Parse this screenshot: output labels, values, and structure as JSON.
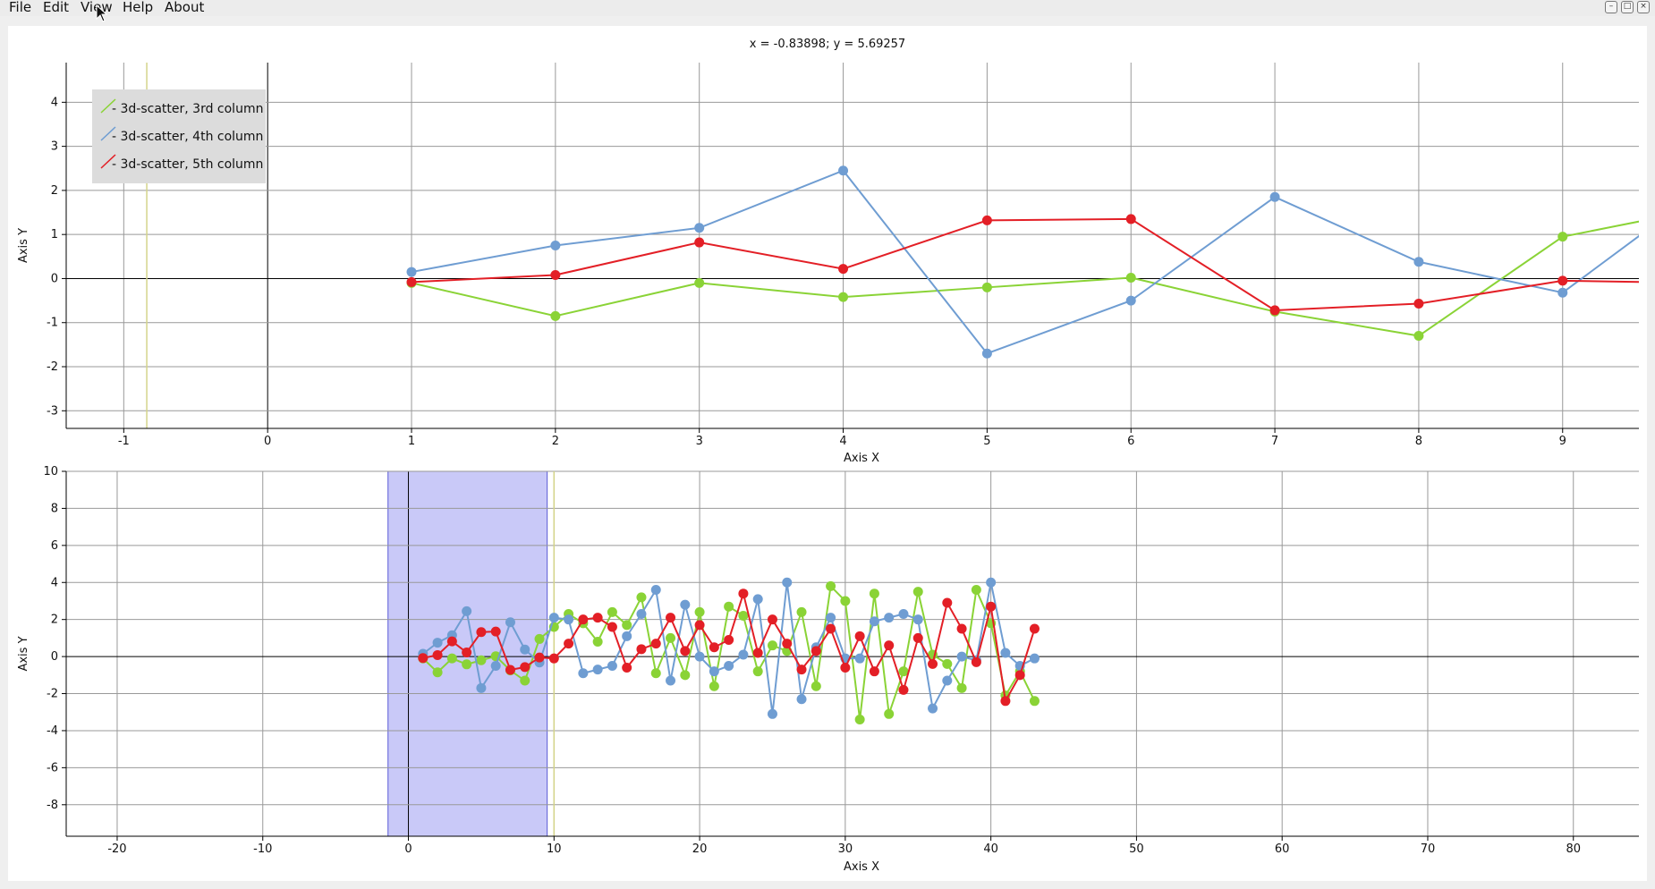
{
  "menubar": {
    "items": [
      "File",
      "Edit",
      "View",
      "Help",
      "About"
    ]
  },
  "window_controls": {
    "minimize_icon": "minimize-icon",
    "maximize_icon": "maximize-icon",
    "close_icon": "close-icon"
  },
  "readout": "x = -0.83898; y = 5.69257",
  "colors": {
    "green": "#8ad336",
    "blue": "#6f9dd2",
    "red": "#e31f26",
    "selection_fill": "#c9c9f8",
    "selection_stroke": "#5b5bd6",
    "marker_line": "#d4d48a"
  },
  "chart_data": [
    {
      "type": "line",
      "xlabel": "Axis X",
      "ylabel": "Axis Y",
      "xlim": [
        -1.4,
        9.53
      ],
      "ylim": [
        -3.4,
        4.9
      ],
      "xticks": [
        -1,
        0,
        1,
        2,
        3,
        4,
        5,
        6,
        7,
        8,
        9
      ],
      "yticks": [
        -3,
        -2,
        -1,
        0,
        1,
        2,
        3,
        4
      ],
      "grid": true,
      "legend_position": "top-left",
      "marker_x": -0.84,
      "series": [
        {
          "name": "3d-scatter, 3rd column",
          "color": "#8ad336",
          "x": [
            1,
            2,
            3,
            4,
            5,
            6,
            7,
            8,
            9,
            10
          ],
          "y": [
            -0.1,
            -0.85,
            -0.1,
            -0.42,
            -0.2,
            0.02,
            -0.75,
            -1.3,
            0.95,
            1.6
          ]
        },
        {
          "name": "3d-scatter, 4th column",
          "color": "#6f9dd2",
          "x": [
            1,
            2,
            3,
            4,
            5,
            6,
            7,
            8,
            9,
            10
          ],
          "y": [
            0.15,
            0.75,
            1.15,
            2.45,
            -1.7,
            -0.5,
            1.85,
            0.38,
            -0.32,
            2.1
          ]
        },
        {
          "name": "3d-scatter, 5th column",
          "color": "#e31f26",
          "x": [
            1,
            2,
            3,
            4,
            5,
            6,
            7,
            8,
            9,
            10
          ],
          "y": [
            -0.08,
            0.08,
            0.82,
            0.22,
            1.32,
            1.35,
            -0.72,
            -0.57,
            -0.05,
            -0.1
          ]
        }
      ]
    },
    {
      "type": "line",
      "xlabel": "Axis X",
      "ylabel": "Axis Y",
      "xlim": [
        -23.5,
        84.5
      ],
      "ylim": [
        -9.7,
        10
      ],
      "xticks": [
        -20,
        -10,
        0,
        10,
        20,
        30,
        40,
        50,
        60,
        70,
        80
      ],
      "yticks": [
        -8,
        -6,
        -4,
        -2,
        0,
        2,
        4,
        6,
        8,
        10
      ],
      "grid": true,
      "selection_range": [
        -1.4,
        9.53
      ],
      "marker_x": 10,
      "series": [
        {
          "color": "#8ad336",
          "x": [
            1,
            2,
            3,
            4,
            5,
            6,
            7,
            8,
            9,
            10,
            11,
            12,
            13,
            14,
            15,
            16,
            17,
            18,
            19,
            20,
            21,
            22,
            23,
            24,
            25,
            26,
            27,
            28,
            29,
            30,
            31,
            32,
            33,
            34,
            35,
            36,
            37,
            38,
            39,
            40,
            41,
            42,
            43
          ],
          "y": [
            -0.1,
            -0.85,
            -0.1,
            -0.42,
            -0.2,
            0.02,
            -0.75,
            -1.3,
            0.95,
            1.6,
            2.3,
            1.8,
            0.8,
            2.4,
            1.7,
            3.2,
            -0.9,
            1.0,
            -1.0,
            2.4,
            -1.6,
            2.7,
            2.2,
            -0.8,
            0.6,
            0.3,
            2.4,
            -1.6,
            3.8,
            3.0,
            -3.4,
            3.4,
            -3.1,
            -0.8,
            3.5,
            0.1,
            -0.4,
            -1.7,
            3.6,
            1.8,
            -2.1,
            -0.8,
            -2.4
          ]
        },
        {
          "color": "#6f9dd2",
          "x": [
            1,
            2,
            3,
            4,
            5,
            6,
            7,
            8,
            9,
            10,
            11,
            12,
            13,
            14,
            15,
            16,
            17,
            18,
            19,
            20,
            21,
            22,
            23,
            24,
            25,
            26,
            27,
            28,
            29,
            30,
            31,
            32,
            33,
            34,
            35,
            36,
            37,
            38,
            39,
            40,
            41,
            42,
            43
          ],
          "y": [
            0.15,
            0.75,
            1.15,
            2.45,
            -1.7,
            -0.5,
            1.85,
            0.38,
            -0.32,
            2.1,
            2.0,
            -0.9,
            -0.7,
            -0.5,
            1.1,
            2.3,
            3.6,
            -1.3,
            2.8,
            0.0,
            -0.8,
            -0.5,
            0.1,
            3.1,
            -3.1,
            4.0,
            -2.3,
            0.5,
            2.1,
            -0.1,
            -0.1,
            1.9,
            2.1,
            2.3,
            2.0,
            -2.8,
            -1.3,
            0.0,
            -0.2,
            4.0,
            0.2,
            -0.5,
            -0.1
          ]
        },
        {
          "color": "#e31f26",
          "x": [
            1,
            2,
            3,
            4,
            5,
            6,
            7,
            8,
            9,
            10,
            11,
            12,
            13,
            14,
            15,
            16,
            17,
            18,
            19,
            20,
            21,
            22,
            23,
            24,
            25,
            26,
            27,
            28,
            29,
            30,
            31,
            32,
            33,
            34,
            35,
            36,
            37,
            38,
            39,
            40,
            41,
            42,
            43
          ],
          "y": [
            -0.08,
            0.08,
            0.82,
            0.22,
            1.32,
            1.35,
            -0.72,
            -0.57,
            -0.05,
            -0.1,
            0.7,
            2.0,
            2.1,
            1.6,
            -0.6,
            0.4,
            0.7,
            2.1,
            0.3,
            1.7,
            0.5,
            0.9,
            3.4,
            0.2,
            2.0,
            0.7,
            -0.7,
            0.3,
            1.5,
            -0.6,
            1.1,
            -0.8,
            0.6,
            -1.8,
            1.0,
            -0.4,
            2.9,
            1.5,
            -0.3,
            2.7,
            -2.4,
            -1.0,
            1.5
          ]
        }
      ]
    }
  ]
}
